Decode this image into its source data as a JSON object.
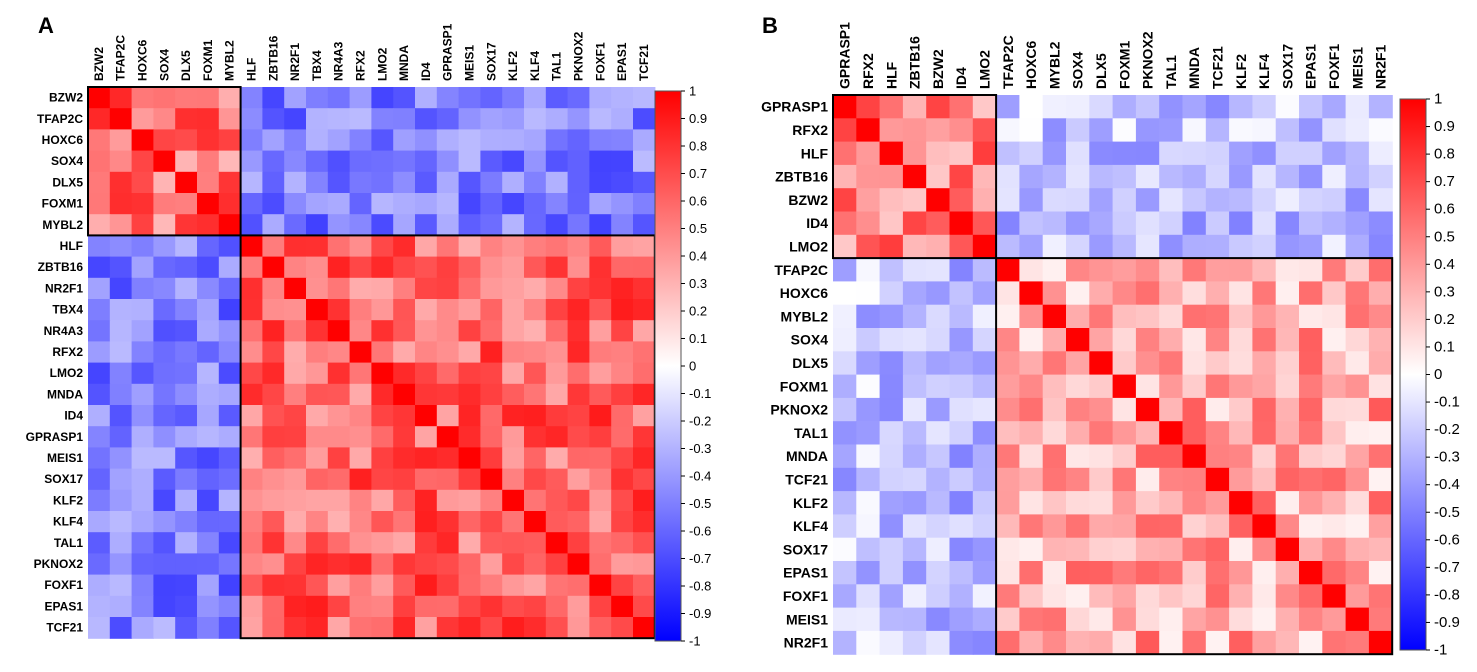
{
  "chart_data": [
    {
      "panel": "A",
      "type": "heatmap",
      "title": "A",
      "genes": [
        "BZW2",
        "TFAP2C",
        "HOXC6",
        "SOX4",
        "DLX5",
        "FOXM1",
        "MYBL2",
        "HLF",
        "ZBTB16",
        "NR2F1",
        "TBX4",
        "NR4A3",
        "RFX2",
        "LMO2",
        "MNDA",
        "ID4",
        "GPRASP1",
        "MEIS1",
        "SOX17",
        "KLF2",
        "KLF4",
        "TAL1",
        "PKNOX2",
        "FOXF1",
        "EPAS1",
        "TCF21"
      ],
      "clusters": [
        [
          "BZW2",
          "TFAP2C",
          "HOXC6",
          "SOX4",
          "DLX5",
          "FOXM1",
          "MYBL2"
        ],
        [
          "HLF",
          "ZBTB16",
          "NR2F1",
          "TBX4",
          "NR4A3",
          "RFX2",
          "LMO2",
          "MNDA",
          "ID4",
          "GPRASP1",
          "MEIS1",
          "SOX17",
          "KLF2",
          "KLF4",
          "TAL1",
          "PKNOX2",
          "FOXF1",
          "EPAS1",
          "TCF21"
        ]
      ],
      "within_cluster_correlation": [
        0.55,
        0.6
      ],
      "between_cluster_correlation": -0.5,
      "diagonal": 1,
      "color_scale": {
        "min": -1,
        "max": 1,
        "low_color": "#0000ff",
        "mid_color": "#ffffff",
        "high_color": "#ff0000",
        "ticks": [
          "1",
          "0.9",
          "0.8",
          "0.7",
          "0.6",
          "0.5",
          "0.4",
          "0.3",
          "0.2",
          "0.1",
          "0",
          "-0.1",
          "-0.2",
          "-0.3",
          "-0.4",
          "-0.5",
          "-0.6",
          "-0.7",
          "-0.8",
          "-0.9",
          "-1"
        ]
      }
    },
    {
      "panel": "B",
      "type": "heatmap",
      "title": "B",
      "genes": [
        "GPRASP1",
        "RFX2",
        "HLF",
        "ZBTB16",
        "BZW2",
        "ID4",
        "LMO2",
        "TFAP2C",
        "HOXC6",
        "MYBL2",
        "SOX4",
        "DLX5",
        "FOXM1",
        "PKNOX2",
        "TAL1",
        "MNDA",
        "TCF21",
        "KLF2",
        "KLF4",
        "SOX17",
        "EPAS1",
        "FOXF1",
        "MEIS1",
        "NR2F1"
      ],
      "clusters": [
        [
          "GPRASP1",
          "RFX2",
          "HLF",
          "ZBTB16",
          "BZW2",
          "ID4",
          "LMO2"
        ],
        [
          "TFAP2C",
          "HOXC6",
          "MYBL2",
          "SOX4",
          "DLX5",
          "FOXM1",
          "PKNOX2",
          "TAL1",
          "MNDA",
          "TCF21",
          "KLF2",
          "KLF4",
          "SOX17",
          "EPAS1",
          "FOXF1",
          "MEIS1",
          "NR2F1"
        ]
      ],
      "within_cluster_correlation": [
        0.5,
        0.35
      ],
      "between_cluster_correlation": -0.25,
      "diagonal": 1,
      "color_scale": {
        "min": -1,
        "max": 1,
        "low_color": "#0000ff",
        "mid_color": "#ffffff",
        "high_color": "#ff0000",
        "ticks": [
          "1",
          "0.9",
          "0.8",
          "0.7",
          "0.6",
          "0.5",
          "0.4",
          "0.3",
          "0.2",
          "0.1",
          "0",
          "-0.1",
          "-0.2",
          "-0.3",
          "-0.4",
          "-0.5",
          "-0.6",
          "-0.7",
          "-0.8",
          "-0.9",
          "-1"
        ]
      }
    }
  ]
}
